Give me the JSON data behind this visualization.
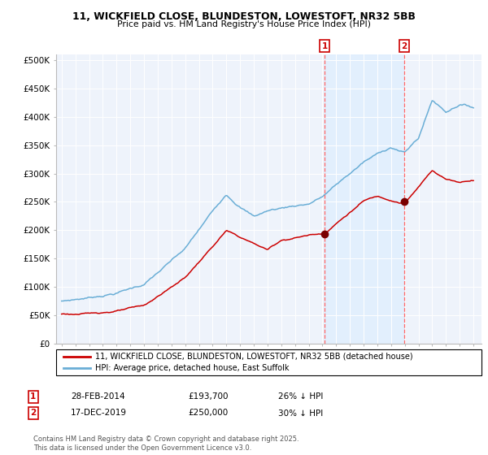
{
  "title_line1": "11, WICKFIELD CLOSE, BLUNDESTON, LOWESTOFT, NR32 5BB",
  "title_line2": "Price paid vs. HM Land Registry's House Price Index (HPI)",
  "ylabel_ticks": [
    "£0",
    "£50K",
    "£100K",
    "£150K",
    "£200K",
    "£250K",
    "£300K",
    "£350K",
    "£400K",
    "£450K",
    "£500K"
  ],
  "ytick_values": [
    0,
    50000,
    100000,
    150000,
    200000,
    250000,
    300000,
    350000,
    400000,
    450000,
    500000
  ],
  "ylim": [
    0,
    510000
  ],
  "xlim_start": 1994.6,
  "xlim_end": 2025.6,
  "marker1_date": 2014.16,
  "marker1_price": 193700,
  "marker1_label": "28-FEB-2014",
  "marker1_text": "£193,700",
  "marker1_pct": "26% ↓ HPI",
  "marker2_date": 2019.96,
  "marker2_price": 250000,
  "marker2_label": "17-DEC-2019",
  "marker2_text": "£250,000",
  "marker2_pct": "30% ↓ HPI",
  "hpi_color": "#6aaed6",
  "price_color": "#cc0000",
  "marker_color": "#7a0000",
  "dashed_line_color": "#ff6666",
  "shade_color": "#ddeeff",
  "legend_label1": "11, WICKFIELD CLOSE, BLUNDESTON, LOWESTOFT, NR32 5BB (detached house)",
  "legend_label2": "HPI: Average price, detached house, East Suffolk",
  "footnote": "Contains HM Land Registry data © Crown copyright and database right 2025.\nThis data is licensed under the Open Government Licence v3.0.",
  "bg_color": "#eef3fb",
  "hpi_anchors_x": [
    1995,
    1997,
    1999,
    2001,
    2004,
    2007,
    2008,
    2009,
    2010,
    2012,
    2013,
    2014,
    2016,
    2017,
    2019,
    2020,
    2021,
    2022,
    2023,
    2024,
    2025
  ],
  "hpi_anchors_y": [
    75000,
    82000,
    92000,
    108000,
    168000,
    265000,
    245000,
    228000,
    238000,
    248000,
    252000,
    265000,
    305000,
    325000,
    352000,
    342000,
    368000,
    435000,
    415000,
    430000,
    425000
  ],
  "price_anchors_x": [
    1995,
    1997,
    1999,
    2001,
    2003,
    2004,
    2007,
    2008,
    2010,
    2011,
    2012,
    2013,
    2014.16,
    2015,
    2016,
    2017,
    2018,
    2019.96,
    2021,
    2022,
    2023,
    2024,
    2025
  ],
  "price_anchors_y": [
    52000,
    52000,
    58000,
    65000,
    98000,
    115000,
    197000,
    185000,
    163000,
    180000,
    185000,
    190000,
    193700,
    212000,
    232000,
    252000,
    260000,
    250000,
    278000,
    308000,
    293000,
    288000,
    293000
  ]
}
